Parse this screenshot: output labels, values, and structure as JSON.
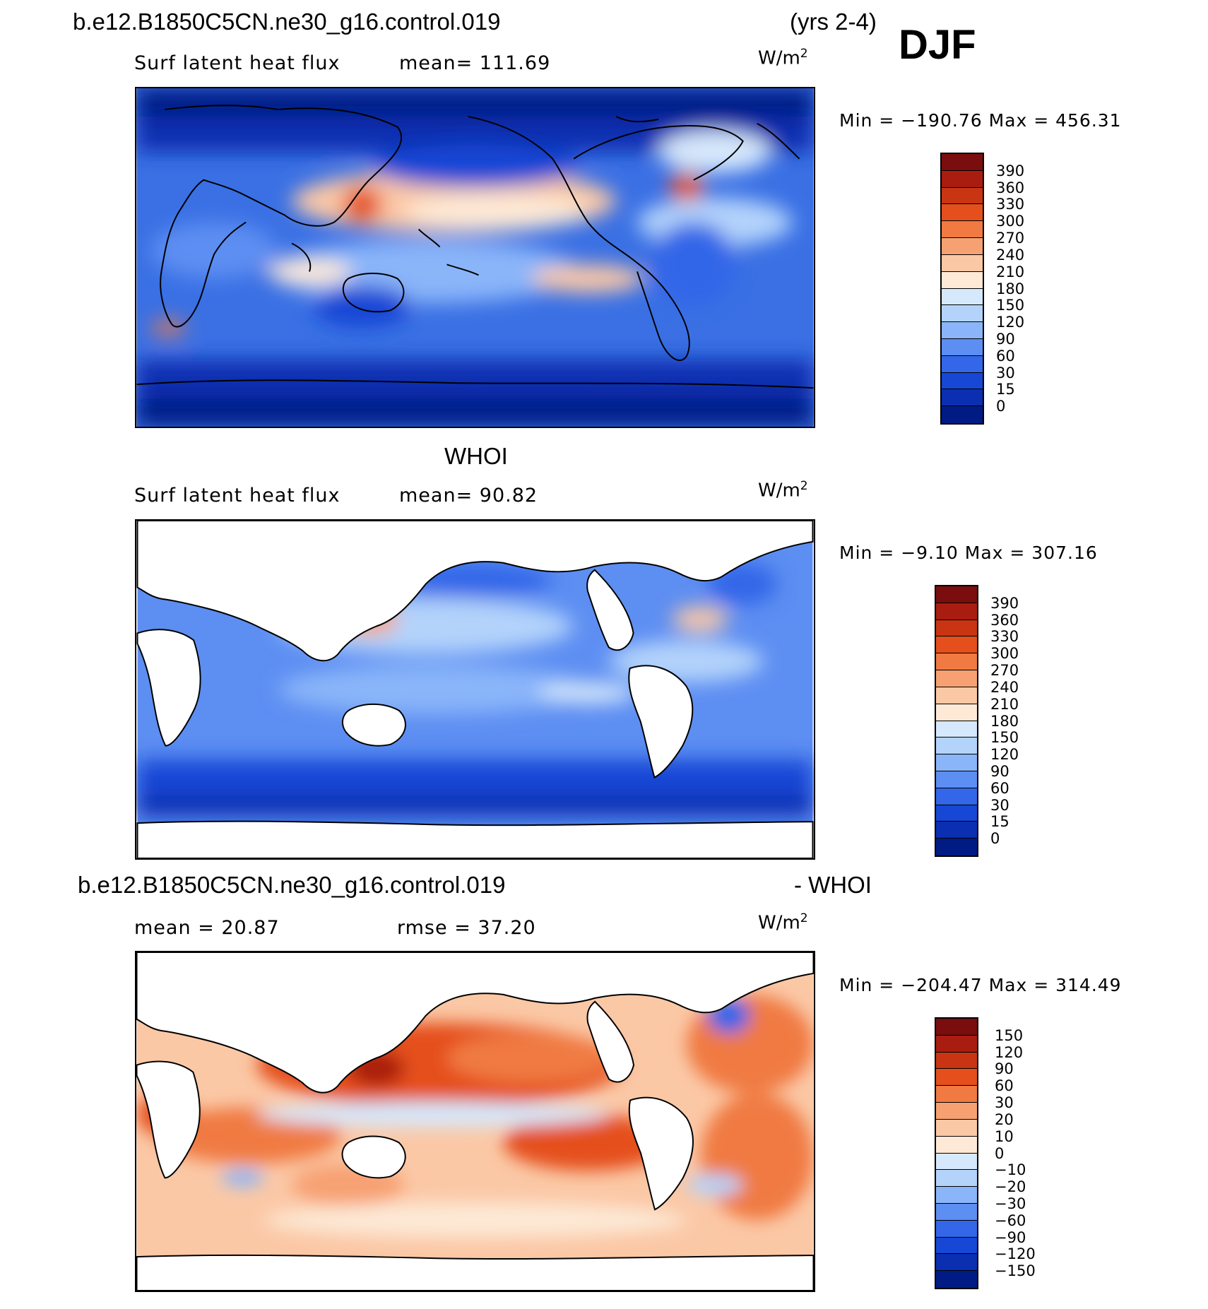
{
  "header": {
    "case_name": "b.e12.B1850C5CN.ne30_g16.control.019",
    "years": "(yrs 2-4)",
    "season": "DJF"
  },
  "panel1": {
    "variable": "Surf latent heat flux",
    "mean_text": "mean= 111.69",
    "units": "W/m",
    "units_sup": "2",
    "minmax_text": "Min = −190.76 Max = 456.31"
  },
  "panel2": {
    "dataset": "WHOI",
    "variable": "Surf latent heat flux",
    "mean_text": "mean=  90.82",
    "units": "W/m",
    "units_sup": "2",
    "minmax_text": "Min =  −9.10 Max = 307.16"
  },
  "panel3": {
    "case_name": "b.e12.B1850C5CN.ne30_g16.control.019",
    "diff_label": "- WHOI",
    "mean_text": "mean =  20.87",
    "rmse_text": "rmse =  37.20",
    "units": "W/m",
    "units_sup": "2",
    "minmax_text": "Min = −204.47 Max = 314.49"
  },
  "colorbar_abs": {
    "labels": [
      "390",
      "360",
      "330",
      "300",
      "270",
      "240",
      "210",
      "180",
      "150",
      "120",
      "90",
      "60",
      "30",
      "15",
      "0"
    ],
    "colors": [
      "#7a0d0d",
      "#a91d10",
      "#c93512",
      "#e54f1c",
      "#f07a42",
      "#f7a173",
      "#fbc8a6",
      "#fde9d6",
      "#d6e8fb",
      "#b3d3fb",
      "#8ab5f9",
      "#5d8ef2",
      "#3366e8",
      "#1747d5",
      "#0a2fb0",
      "#001b84"
    ]
  },
  "colorbar_diff": {
    "labels": [
      "150",
      "120",
      "90",
      "60",
      "30",
      "20",
      "10",
      "0",
      "−10",
      "−20",
      "−30",
      "−60",
      "−90",
      "−120",
      "−150"
    ],
    "colors": [
      "#7a0d0d",
      "#a91d10",
      "#c93512",
      "#e54f1c",
      "#f07a42",
      "#f7a173",
      "#fbc8a6",
      "#fde9d6",
      "#d6e8fb",
      "#b3d3fb",
      "#8ab5f9",
      "#5d8ef2",
      "#3366e8",
      "#1747d5",
      "#0a2fb0",
      "#001b84"
    ]
  }
}
